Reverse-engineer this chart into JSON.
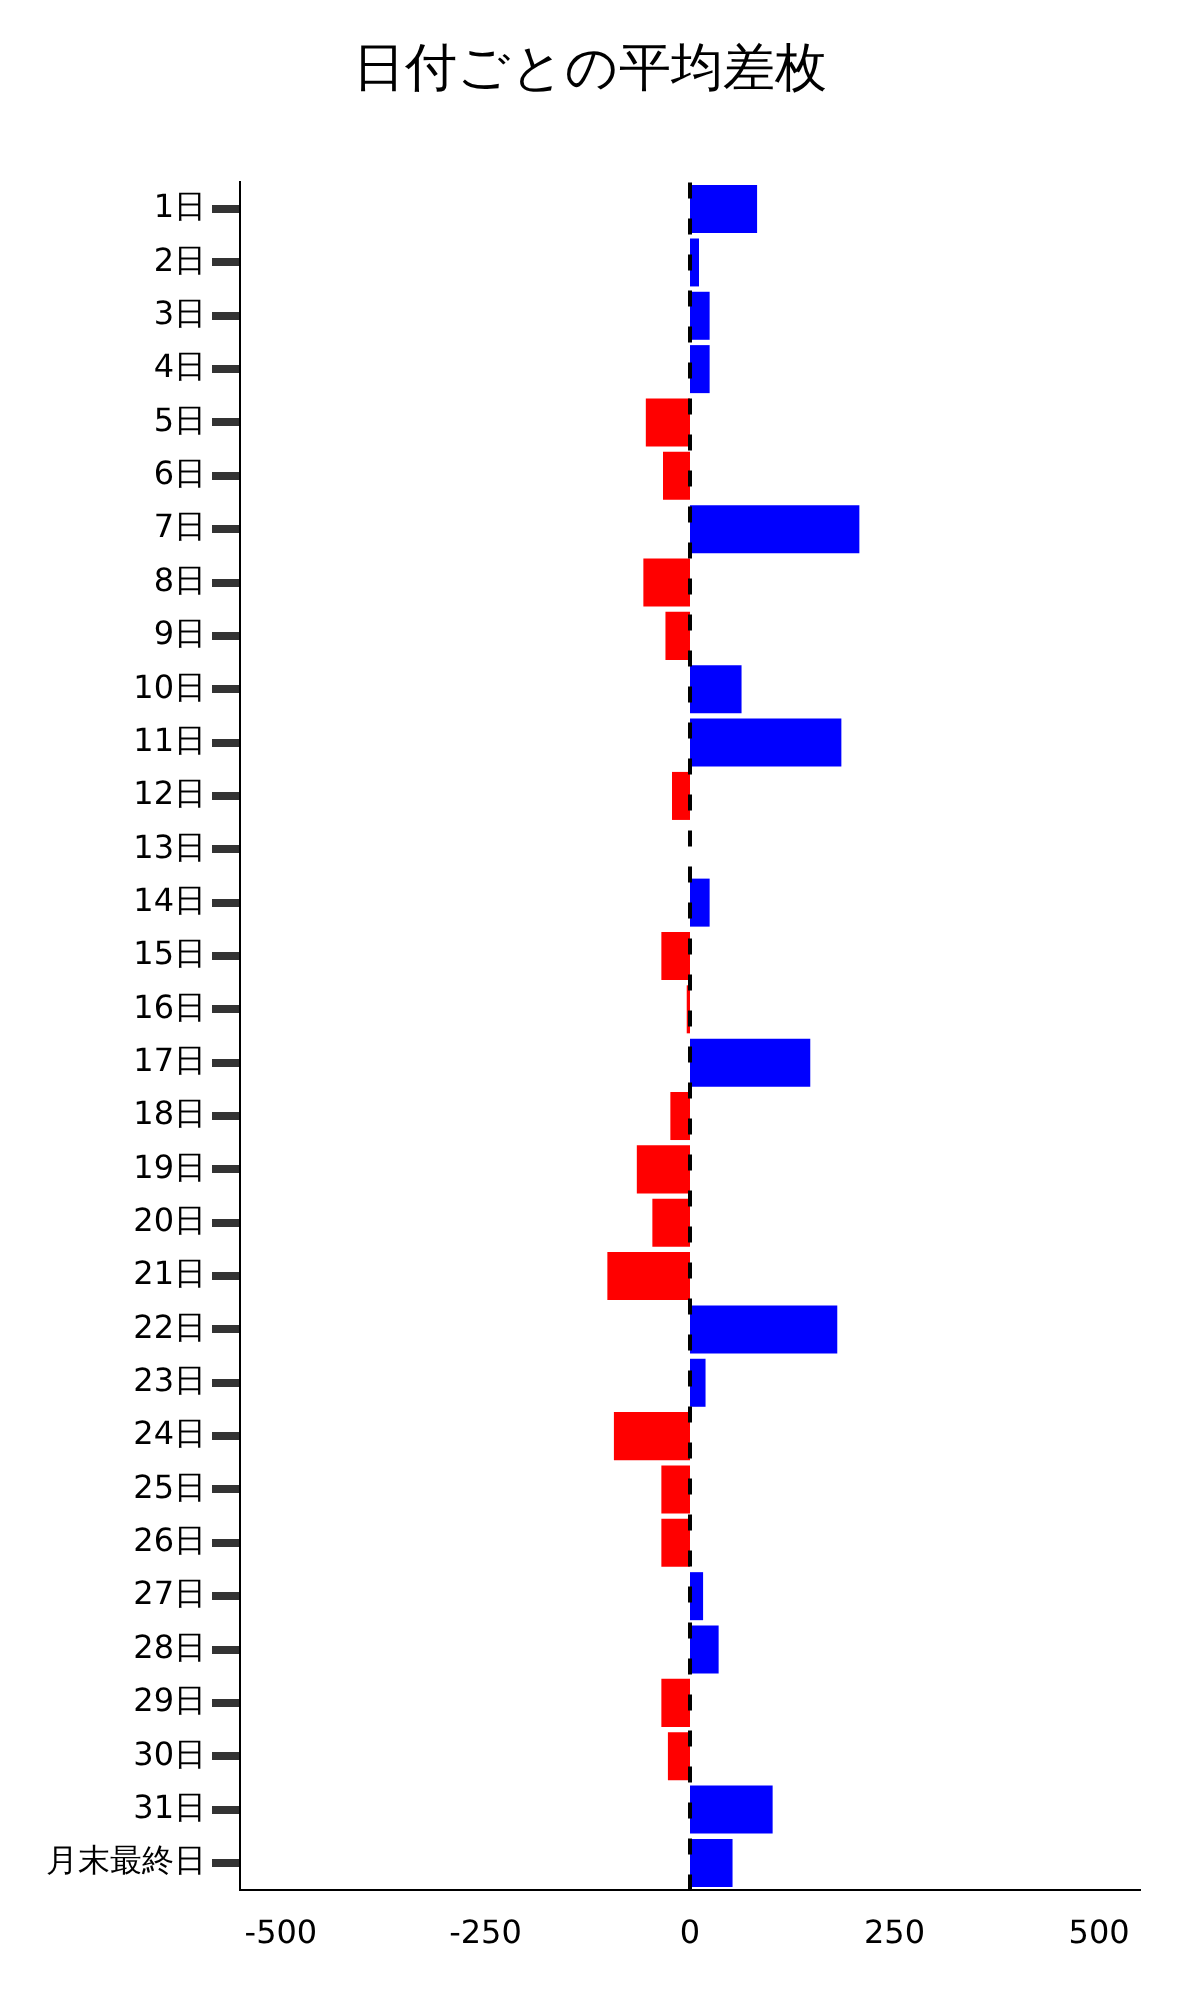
{
  "chart_data": {
    "type": "bar",
    "orientation": "horizontal",
    "title": "日付ごとの平均差枚",
    "categories": [
      "1日",
      "2日",
      "3日",
      "4日",
      "5日",
      "6日",
      "7日",
      "8日",
      "9日",
      "10日",
      "11日",
      "12日",
      "13日",
      "14日",
      "15日",
      "16日",
      "17日",
      "18日",
      "19日",
      "20日",
      "21日",
      "22日",
      "23日",
      "24日",
      "25日",
      "26日",
      "27日",
      "28日",
      "29日",
      "30日",
      "31日",
      "月末最終日"
    ],
    "values": [
      82,
      11,
      24,
      24,
      -54,
      -33,
      207,
      -57,
      -30,
      63,
      185,
      -22,
      0,
      24,
      -35,
      -4,
      147,
      -24,
      -65,
      -46,
      -101,
      180,
      19,
      -93,
      -35,
      -35,
      16,
      35,
      -35,
      -27,
      101,
      52
    ],
    "colors": [
      "#0000ff",
      "#0000ff",
      "#0000ff",
      "#0000ff",
      "#ff0000",
      "#ff0000",
      "#0000ff",
      "#ff0000",
      "#ff0000",
      "#0000ff",
      "#0000ff",
      "#ff0000",
      "#ff0000",
      "#0000ff",
      "#ff0000",
      "#ff0000",
      "#0000ff",
      "#ff0000",
      "#ff0000",
      "#ff0000",
      "#ff0000",
      "#0000ff",
      "#0000ff",
      "#ff0000",
      "#ff0000",
      "#ff0000",
      "#0000ff",
      "#0000ff",
      "#ff0000",
      "#ff0000",
      "#0000ff",
      "#0000ff"
    ],
    "xlim": [
      -550,
      550
    ],
    "xticks": [
      -500,
      -250,
      0,
      250,
      500
    ],
    "ref_lines": [
      {
        "axis": "x",
        "value": 0,
        "color": "#000000",
        "line_style": "dashed"
      }
    ],
    "grid": false,
    "legend": false
  }
}
